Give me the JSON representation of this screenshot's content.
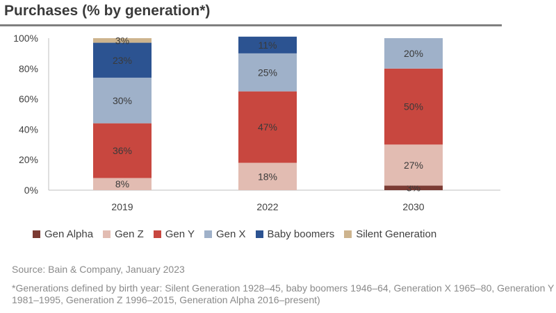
{
  "chart_data": {
    "type": "bar",
    "stacked": true,
    "title": "Purchases (% by generation*)",
    "categories": [
      "2019",
      "2022",
      "2030"
    ],
    "ylim": [
      0,
      100
    ],
    "yticks": [
      "0%",
      "20%",
      "40%",
      "60%",
      "80%",
      "100%"
    ],
    "grid": false,
    "legend_position": "bottom",
    "series": [
      {
        "name": "Gen Alpha",
        "color": "#7b3b33",
        "values": [
          0,
          0,
          3
        ],
        "labels": [
          "",
          "",
          "3%"
        ]
      },
      {
        "name": "Gen Z",
        "color": "#e2bcb2",
        "values": [
          8,
          18,
          27
        ],
        "labels": [
          "8%",
          "18%",
          "27%"
        ]
      },
      {
        "name": "Gen Y",
        "color": "#c8473f",
        "values": [
          36,
          47,
          50
        ],
        "labels": [
          "36%",
          "47%",
          "50%"
        ]
      },
      {
        "name": "Gen X",
        "color": "#9fb1c9",
        "values": [
          30,
          25,
          20
        ],
        "labels": [
          "30%",
          "25%",
          "20%"
        ]
      },
      {
        "name": "Baby boomers",
        "color": "#2c5391",
        "values": [
          23,
          11,
          0
        ],
        "labels": [
          "23%",
          "11%",
          ""
        ]
      },
      {
        "name": "Silent Generation",
        "color": "#cdb48e",
        "values": [
          3,
          0,
          0
        ],
        "labels": [
          "3%",
          "",
          ""
        ]
      }
    ]
  },
  "source": "Source: Bain & Company, January 2023",
  "footnote": "*Generations defined by birth year: Silent Generation 1928–45, baby boomers 1946–64, Generation X 1965–80, Generation Y 1981–1995, Generation Z 1996–2015, Generation Alpha 2016–present)"
}
